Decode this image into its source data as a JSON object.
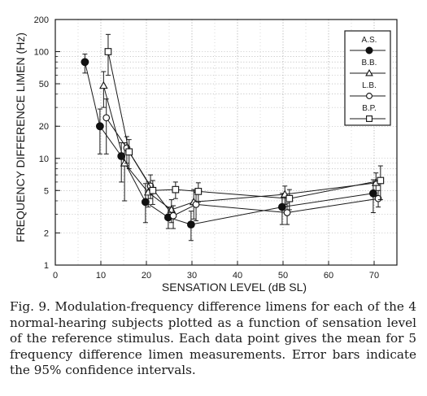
{
  "chart_data": {
    "type": "scatter",
    "xlabel": "SENSATION LEVEL (dB SL)",
    "ylabel": "FREQUENCY DIFFERENCE LIMEN (Hz)",
    "xlim": [
      0,
      75
    ],
    "ylim": [
      1,
      200
    ],
    "y_scale": "log",
    "x_ticks": [
      "0",
      "10",
      "20",
      "30",
      "40",
      "50",
      "60",
      "70"
    ],
    "y_ticks": [
      "1",
      "2",
      "5",
      "10",
      "20",
      "50",
      "100",
      "200"
    ],
    "grid": true,
    "legend_position": "top-right",
    "series": [
      {
        "name": "A.S.",
        "marker": "filled-circle",
        "points": [
          {
            "x": 6.5,
            "y": 80,
            "lo": 63,
            "hi": 95
          },
          {
            "x": 9.8,
            "y": 20,
            "lo": 11,
            "hi": 29
          },
          {
            "x": 14.5,
            "y": 10.5,
            "lo": 6,
            "hi": 14
          },
          {
            "x": 19.8,
            "y": 3.9,
            "lo": 2.5,
            "hi": 5.8
          },
          {
            "x": 24.8,
            "y": 2.8,
            "lo": 2.2,
            "hi": 3.5
          },
          {
            "x": 29.8,
            "y": 2.4,
            "lo": 1.7,
            "hi": 3.2
          },
          {
            "x": 49.8,
            "y": 3.5,
            "lo": 2.4,
            "hi": 4.7
          },
          {
            "x": 69.8,
            "y": 4.7,
            "lo": 3.1,
            "hi": 6.3
          }
        ]
      },
      {
        "name": "B.B.",
        "marker": "open-triangle",
        "points": [
          {
            "x": 10.6,
            "y": 48,
            "lo": 30,
            "hi": 65
          },
          {
            "x": 15.2,
            "y": 9,
            "lo": 4,
            "hi": 14
          },
          {
            "x": 20.4,
            "y": 4.8,
            "lo": 3.5,
            "hi": 6
          },
          {
            "x": 25.5,
            "y": 3.3,
            "lo": 2.5,
            "hi": 4.1
          },
          {
            "x": 30.4,
            "y": 3.9,
            "lo": 2.7,
            "hi": 5.1
          },
          {
            "x": 50.4,
            "y": 4.6,
            "lo": 3.7,
            "hi": 5.5
          },
          {
            "x": 70.4,
            "y": 5.9,
            "lo": 4.5,
            "hi": 7.3
          }
        ]
      },
      {
        "name": "L.B.",
        "marker": "open-circle",
        "points": [
          {
            "x": 11.2,
            "y": 24,
            "lo": 11,
            "hi": 36
          },
          {
            "x": 15.7,
            "y": 12.5,
            "lo": 9,
            "hi": 16
          },
          {
            "x": 20.9,
            "y": 5.5,
            "lo": 4.2,
            "hi": 7
          },
          {
            "x": 25.9,
            "y": 2.9,
            "lo": 2.2,
            "hi": 3.6
          },
          {
            "x": 30.9,
            "y": 3.7,
            "lo": 2.6,
            "hi": 4.8
          },
          {
            "x": 50.9,
            "y": 3.1,
            "lo": 2.4,
            "hi": 3.8
          },
          {
            "x": 70.9,
            "y": 4.2,
            "lo": 3.5,
            "hi": 5
          }
        ]
      },
      {
        "name": "B.P.",
        "marker": "open-square",
        "points": [
          {
            "x": 11.6,
            "y": 100,
            "lo": 60,
            "hi": 145
          },
          {
            "x": 16.2,
            "y": 11.5,
            "lo": 8,
            "hi": 15
          },
          {
            "x": 21.4,
            "y": 5,
            "lo": 3.7,
            "hi": 6.2
          },
          {
            "x": 26.4,
            "y": 5.1,
            "lo": 4.2,
            "hi": 6
          },
          {
            "x": 31.4,
            "y": 4.9,
            "lo": 3.9,
            "hi": 5.9
          },
          {
            "x": 51.4,
            "y": 4.2,
            "lo": 3.3,
            "hi": 5.1
          },
          {
            "x": 71.4,
            "y": 6.2,
            "lo": 4.1,
            "hi": 8.5
          }
        ]
      }
    ]
  },
  "caption": "Fig. 9. Modulation-frequency difference limens for each of the 4 normal-hearing subjects plotted as a function of sensation level of the reference stimulus. Each data point gives the mean for 5 frequency difference limen measurements. Error bars indicate the 95% confidence intervals."
}
